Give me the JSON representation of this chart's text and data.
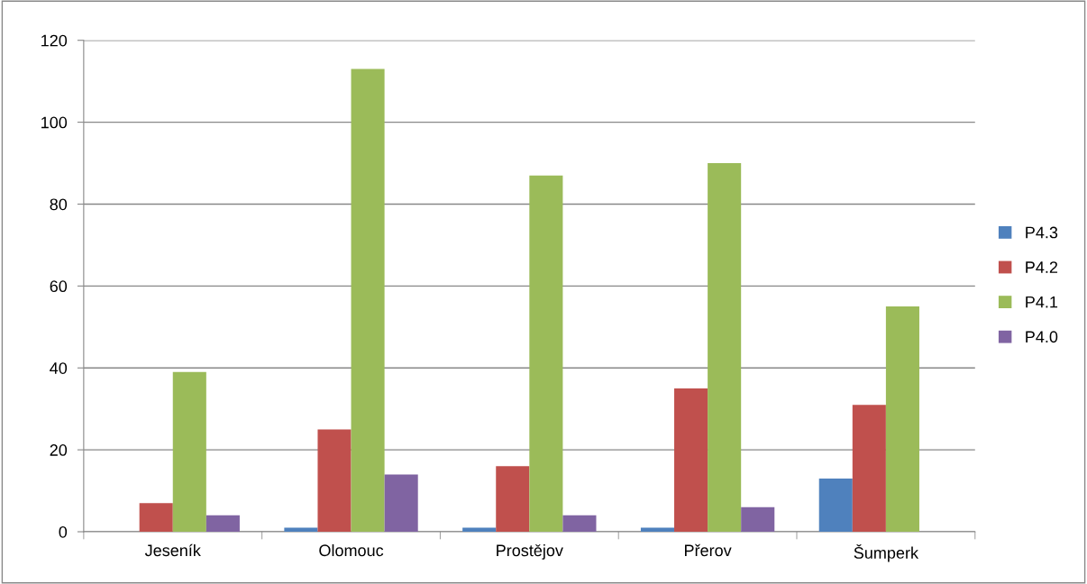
{
  "chart_data": {
    "type": "bar",
    "categories": [
      "Jeseník",
      "Olomouc",
      "Prostějov",
      "Přerov",
      "Šumperk"
    ],
    "series": [
      {
        "name": "P4.3",
        "color": "#4f81bd",
        "values": [
          0,
          1,
          1,
          1,
          13
        ]
      },
      {
        "name": "P4.2",
        "color": "#c0504d",
        "values": [
          7,
          25,
          16,
          35,
          31
        ]
      },
      {
        "name": "P4.1",
        "color": "#9bbb59",
        "values": [
          39,
          113,
          87,
          90,
          55
        ]
      },
      {
        "name": "P4.0",
        "color": "#8064a2",
        "values": [
          4,
          14,
          4,
          6,
          0
        ]
      }
    ],
    "ylim": [
      0,
      120
    ],
    "yticks": [
      0,
      20,
      40,
      60,
      80,
      100,
      120
    ],
    "grid": "y",
    "legend": "right"
  }
}
